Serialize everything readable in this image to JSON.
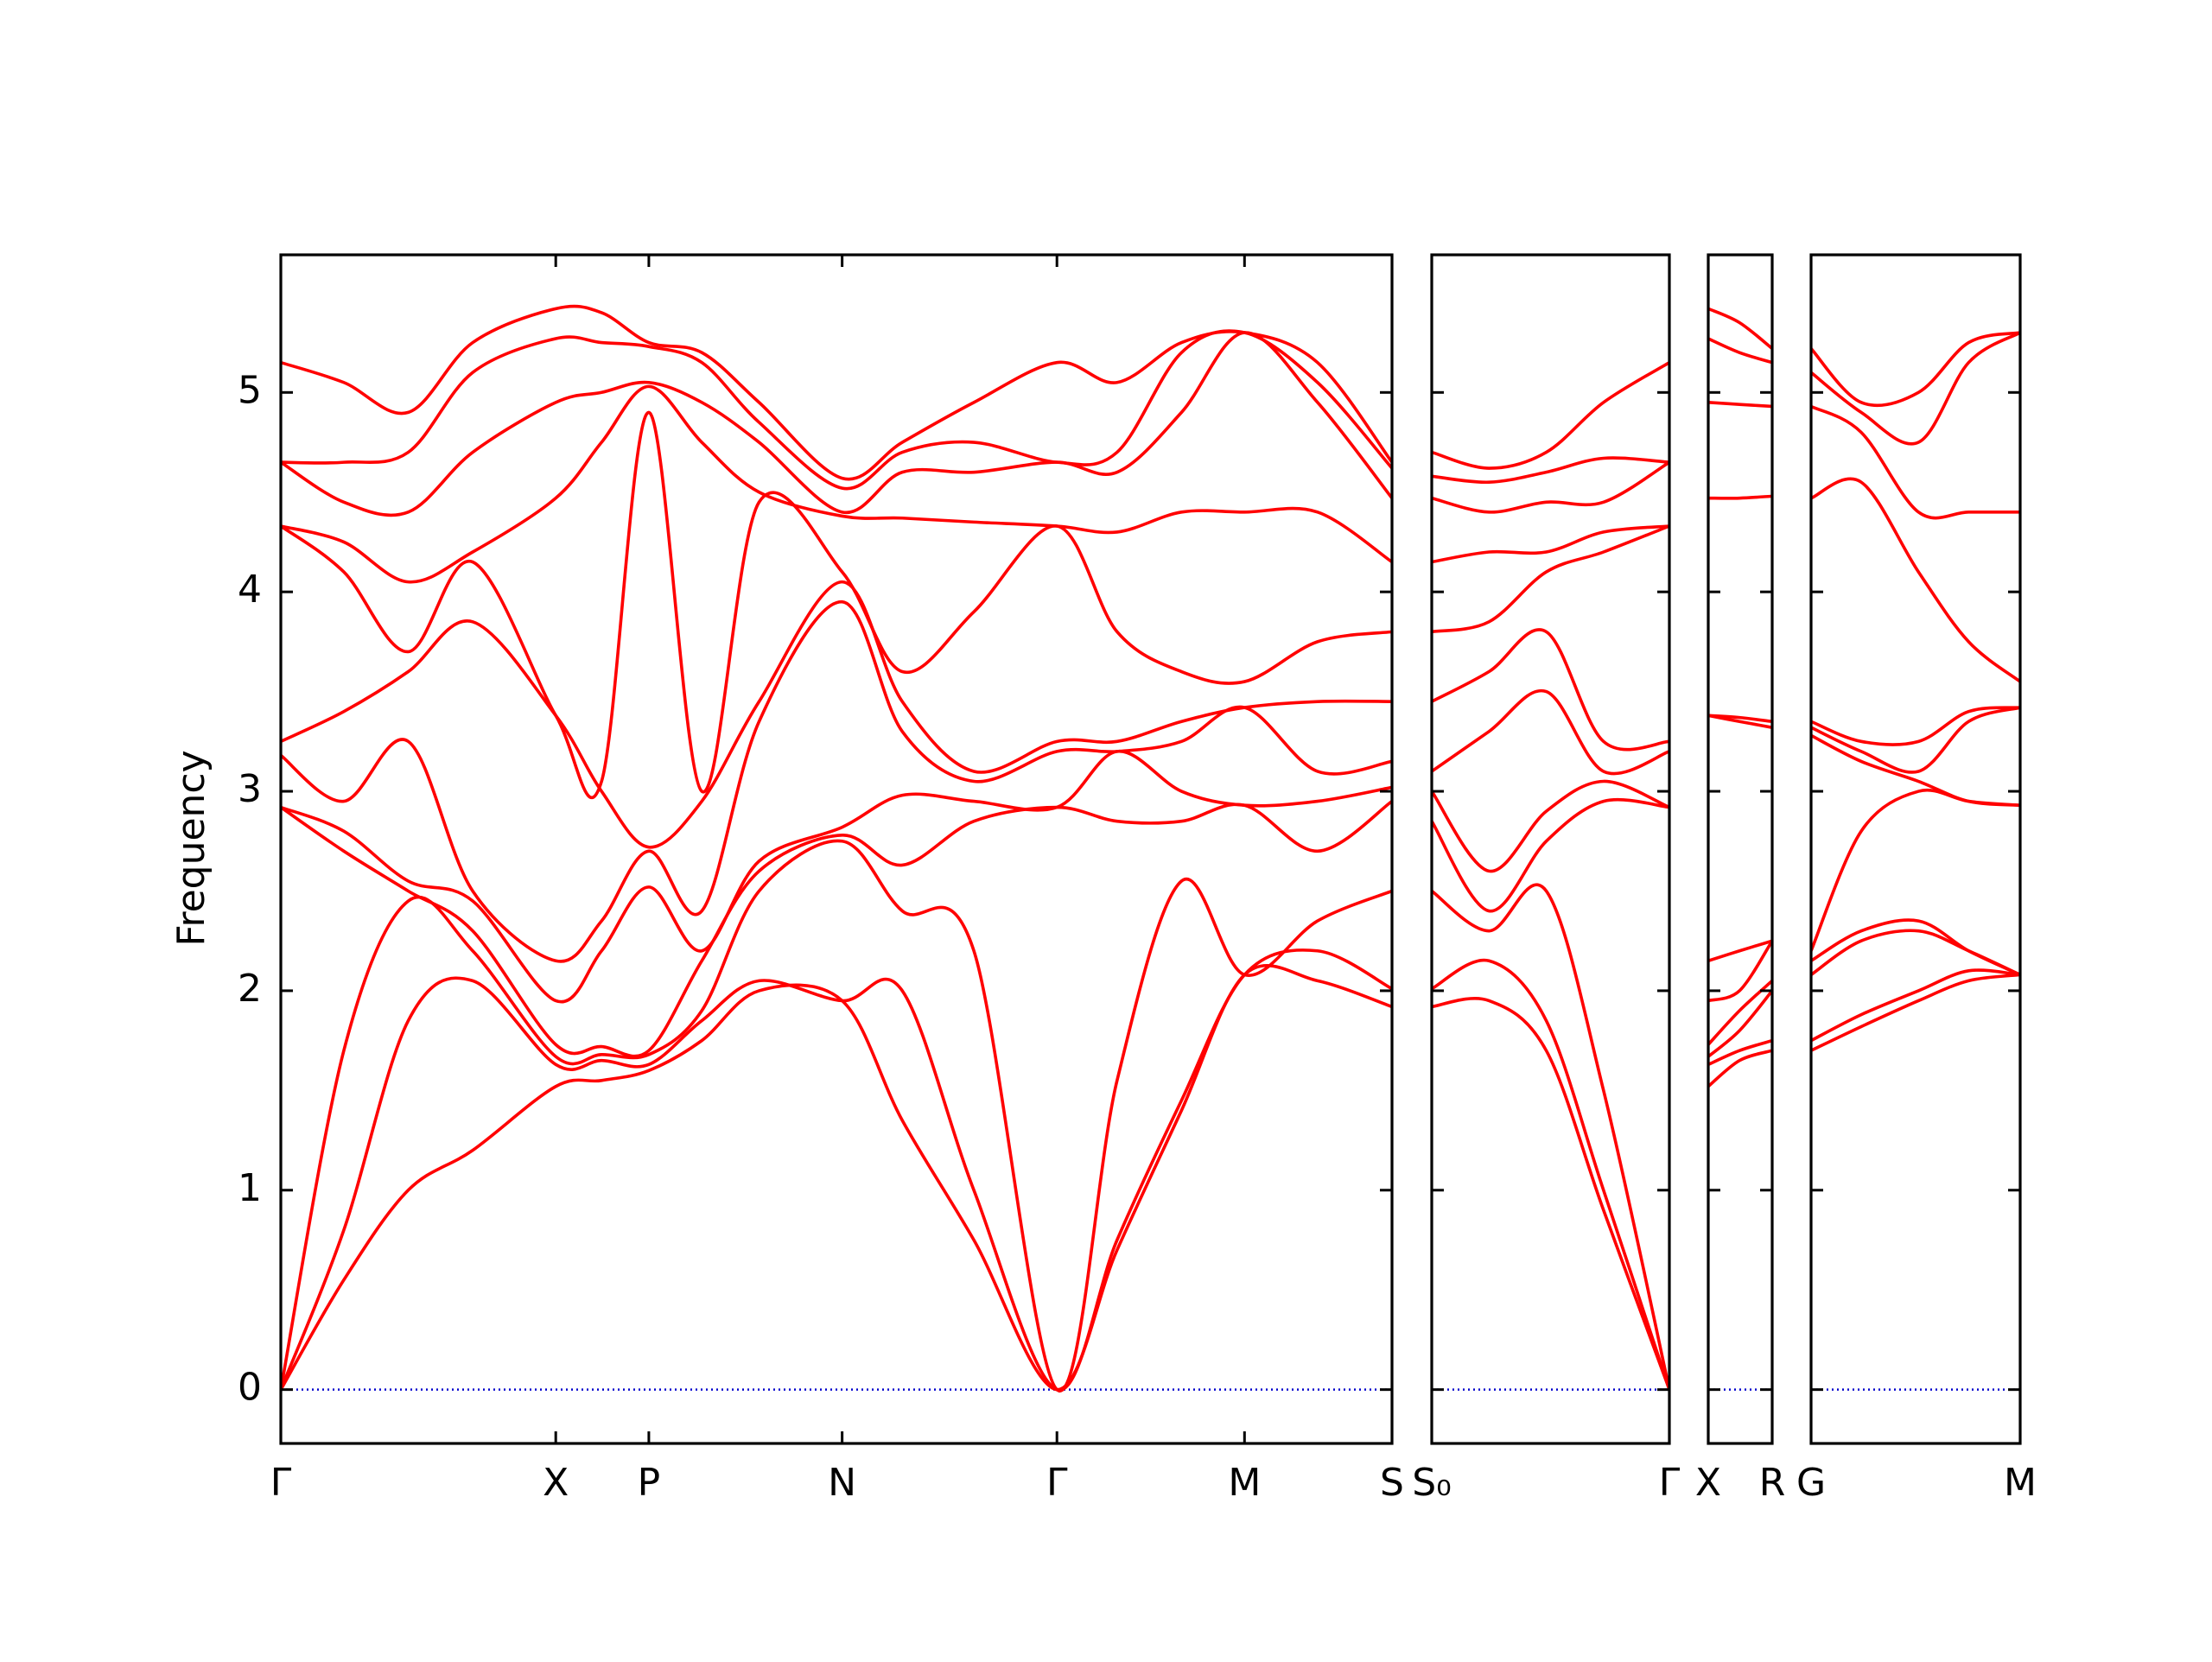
{
  "chart_data": {
    "type": "line",
    "ylabel": "Frequency",
    "ylim": [
      -0.27,
      5.69
    ],
    "yticks": [
      0,
      1,
      2,
      3,
      4,
      5
    ],
    "line_color": "#ff0000",
    "hlines": [
      {
        "y": 0,
        "color": "#0000cc",
        "style": "dotted"
      }
    ],
    "panels": [
      {
        "x": [
          0,
          0.44,
          0.89,
          1.34,
          1.92,
          2.24,
          2.57,
          2.94,
          3.34,
          3.92,
          4.34,
          4.84,
          5.42,
          5.84,
          6.29,
          6.73,
          7.24,
          7.76
        ],
        "xlim": [
          0,
          7.76
        ],
        "xticks": [
          {
            "value": 0,
            "label": "Γ"
          },
          {
            "value": 1.92,
            "label": "X"
          },
          {
            "value": 2.57,
            "label": "P"
          },
          {
            "value": 3.92,
            "label": "N"
          },
          {
            "value": 5.42,
            "label": "Γ"
          },
          {
            "value": 6.73,
            "label": "M"
          },
          {
            "value": 7.76,
            "label": "S"
          }
        ],
        "series": [
          {
            "values": [
              0,
              0.55,
              1.0,
              1.2,
              1.52,
              1.55,
              1.6,
              1.75,
              2.0,
              1.95,
              1.35,
              0.75,
              0,
              0.7,
              1.4,
              2.08,
              2.05,
              1.92
            ]
          },
          {
            "values": [
              0,
              0.8,
              1.85,
              2.05,
              1.63,
              1.65,
              1.63,
              1.85,
              2.05,
              1.95,
              2.0,
              1.0,
              0,
              0.75,
              1.45,
              2.08,
              2.2,
              2.01
            ]
          },
          {
            "values": [
              0,
              1.7,
              2.45,
              2.2,
              1.67,
              1.68,
              1.68,
              1.9,
              2.5,
              2.75,
              2.4,
              2.2,
              0,
              1.55,
              2.55,
              2.08,
              2.35,
              2.5
            ]
          },
          {
            "values": [
              2.92,
              2.7,
              2.5,
              2.3,
              1.73,
              1.72,
              1.7,
              2.15,
              2.6,
              2.78,
              2.63,
              2.85,
              2.92,
              2.85,
              2.85,
              2.93,
              2.7,
              2.95
            ]
          },
          {
            "values": [
              2.92,
              2.8,
              2.55,
              2.45,
              1.95,
              2.2,
              2.52,
              2.2,
              2.65,
              2.82,
              2.98,
              2.95,
              2.92,
              3.2,
              3.0,
              2.93,
              2.95,
              3.02
            ]
          },
          {
            "values": [
              3.18,
              2.95,
              3.25,
              2.5,
              2.15,
              2.35,
              2.7,
              2.4,
              3.35,
              3.95,
              3.3,
              3.05,
              3.2,
              3.2,
              3.25,
              3.42,
              3.1,
              3.15
            ]
          },
          {
            "values": [
              3.25,
              3.4,
              3.6,
              3.85,
              3.38,
              3.0,
              2.72,
              2.95,
              3.45,
              4.05,
              3.45,
              3.1,
              3.25,
              3.25,
              3.35,
              3.42,
              3.45,
              3.45
            ]
          },
          {
            "values": [
              4.33,
              4.1,
              3.7,
              4.15,
              3.38,
              3.05,
              4.9,
              3.0,
              4.45,
              4.1,
              3.6,
              3.9,
              4.33,
              3.8,
              3.6,
              3.55,
              3.75,
              3.8
            ]
          },
          {
            "values": [
              4.33,
              4.25,
              4.05,
              4.2,
              4.47,
              4.75,
              5.03,
              4.75,
              4.5,
              4.38,
              4.37,
              4.35,
              4.33,
              4.3,
              4.4,
              4.4,
              4.4,
              4.15
            ]
          },
          {
            "values": [
              4.65,
              4.45,
              4.4,
              4.7,
              4.95,
              5.0,
              5.05,
              4.95,
              4.75,
              4.4,
              4.6,
              4.6,
              4.65,
              4.6,
              4.9,
              5.3,
              4.95,
              4.47
            ]
          },
          {
            "values": [
              4.65,
              4.65,
              4.7,
              5.1,
              5.27,
              5.25,
              5.23,
              5.15,
              4.85,
              4.52,
              4.7,
              4.75,
              4.65,
              4.7,
              5.2,
              5.3,
              5.05,
              4.62
            ]
          },
          {
            "values": [
              5.15,
              5.05,
              4.9,
              5.25,
              5.42,
              5.4,
              5.25,
              5.2,
              4.95,
              4.57,
              4.75,
              4.95,
              5.15,
              5.05,
              5.25,
              5.3,
              5.15,
              4.65
            ]
          }
        ]
      },
      {
        "x": [
          7.76,
          8.16,
          8.56,
          8.96,
          9.42
        ],
        "xlim": [
          7.76,
          9.42
        ],
        "xticks": [
          {
            "value": 7.76,
            "label": "S₀"
          },
          {
            "value": 9.42,
            "label": "Γ"
          }
        ],
        "series": [
          {
            "values": [
              1.92,
              1.95,
              1.7,
              0.9,
              0
            ]
          },
          {
            "values": [
              2.01,
              2.15,
              1.85,
              1.0,
              0
            ]
          },
          {
            "values": [
              2.5,
              2.3,
              2.5,
              1.5,
              0
            ]
          },
          {
            "values": [
              2.85,
              2.4,
              2.75,
              2.95,
              2.92
            ]
          },
          {
            "values": [
              3.0,
              2.6,
              2.9,
              3.05,
              2.92
            ]
          },
          {
            "values": [
              3.1,
              3.3,
              3.5,
              3.1,
              3.2
            ]
          },
          {
            "values": [
              3.45,
              3.6,
              3.8,
              3.25,
              3.25
            ]
          },
          {
            "values": [
              3.8,
              3.85,
              4.1,
              4.2,
              4.33
            ]
          },
          {
            "values": [
              4.15,
              4.2,
              4.2,
              4.3,
              4.33
            ]
          },
          {
            "values": [
              4.47,
              4.4,
              4.45,
              4.45,
              4.65
            ]
          },
          {
            "values": [
              4.58,
              4.55,
              4.6,
              4.67,
              4.65
            ]
          },
          {
            "values": [
              4.7,
              4.62,
              4.7,
              4.95,
              5.15
            ]
          }
        ]
      },
      {
        "x": [
          9.42,
          9.64,
          9.87
        ],
        "xlim": [
          9.42,
          9.87
        ],
        "xticks": [
          {
            "value": 9.42,
            "label": "X"
          },
          {
            "value": 9.87,
            "label": "R"
          }
        ],
        "series": [
          {
            "values": [
              1.52,
              1.65,
              1.7
            ]
          },
          {
            "values": [
              1.63,
              1.7,
              1.75
            ]
          },
          {
            "values": [
              1.67,
              1.8,
              2.0
            ]
          },
          {
            "values": [
              1.73,
              1.9,
              2.05
            ]
          },
          {
            "values": [
              1.95,
              2.0,
              2.25
            ]
          },
          {
            "values": [
              2.15,
              2.2,
              2.25
            ]
          },
          {
            "values": [
              3.38,
              3.35,
              3.32
            ]
          },
          {
            "values": [
              3.38,
              3.37,
              3.35
            ]
          },
          {
            "values": [
              4.47,
              4.47,
              4.48
            ]
          },
          {
            "values": [
              4.95,
              4.94,
              4.93
            ]
          },
          {
            "values": [
              5.27,
              5.2,
              5.15
            ]
          },
          {
            "values": [
              5.42,
              5.35,
              5.22
            ]
          }
        ]
      },
      {
        "x": [
          9.87,
          10.22,
          10.62,
          10.97,
          11.33
        ],
        "xlim": [
          9.87,
          11.33
        ],
        "xticks": [
          {
            "value": 9.87,
            "label": "G"
          },
          {
            "value": 11.33,
            "label": "M"
          }
        ],
        "series": [
          {
            "values": [
              1.7,
              1.82,
              1.95,
              2.05,
              2.08
            ]
          },
          {
            "values": [
              1.75,
              1.88,
              2.0,
              2.1,
              2.08
            ]
          },
          {
            "values": [
              2.08,
              2.25,
              2.3,
              2.2,
              2.08
            ]
          },
          {
            "values": [
              2.15,
              2.3,
              2.35,
              2.2,
              2.08
            ]
          },
          {
            "values": [
              2.2,
              2.8,
              3.0,
              2.95,
              2.93
            ]
          },
          {
            "values": [
              3.28,
              3.15,
              3.05,
              2.95,
              2.93
            ]
          },
          {
            "values": [
              3.32,
              3.2,
              3.1,
              3.35,
              3.42
            ]
          },
          {
            "values": [
              3.35,
              3.25,
              3.25,
              3.4,
              3.42
            ]
          },
          {
            "values": [
              4.47,
              4.55,
              4.1,
              3.75,
              3.55
            ]
          },
          {
            "values": [
              4.93,
              4.8,
              4.4,
              4.4,
              4.4
            ]
          },
          {
            "values": [
              5.1,
              4.9,
              4.75,
              5.15,
              5.3
            ]
          },
          {
            "values": [
              5.22,
              4.95,
              5.0,
              5.25,
              5.3
            ]
          }
        ]
      }
    ]
  }
}
